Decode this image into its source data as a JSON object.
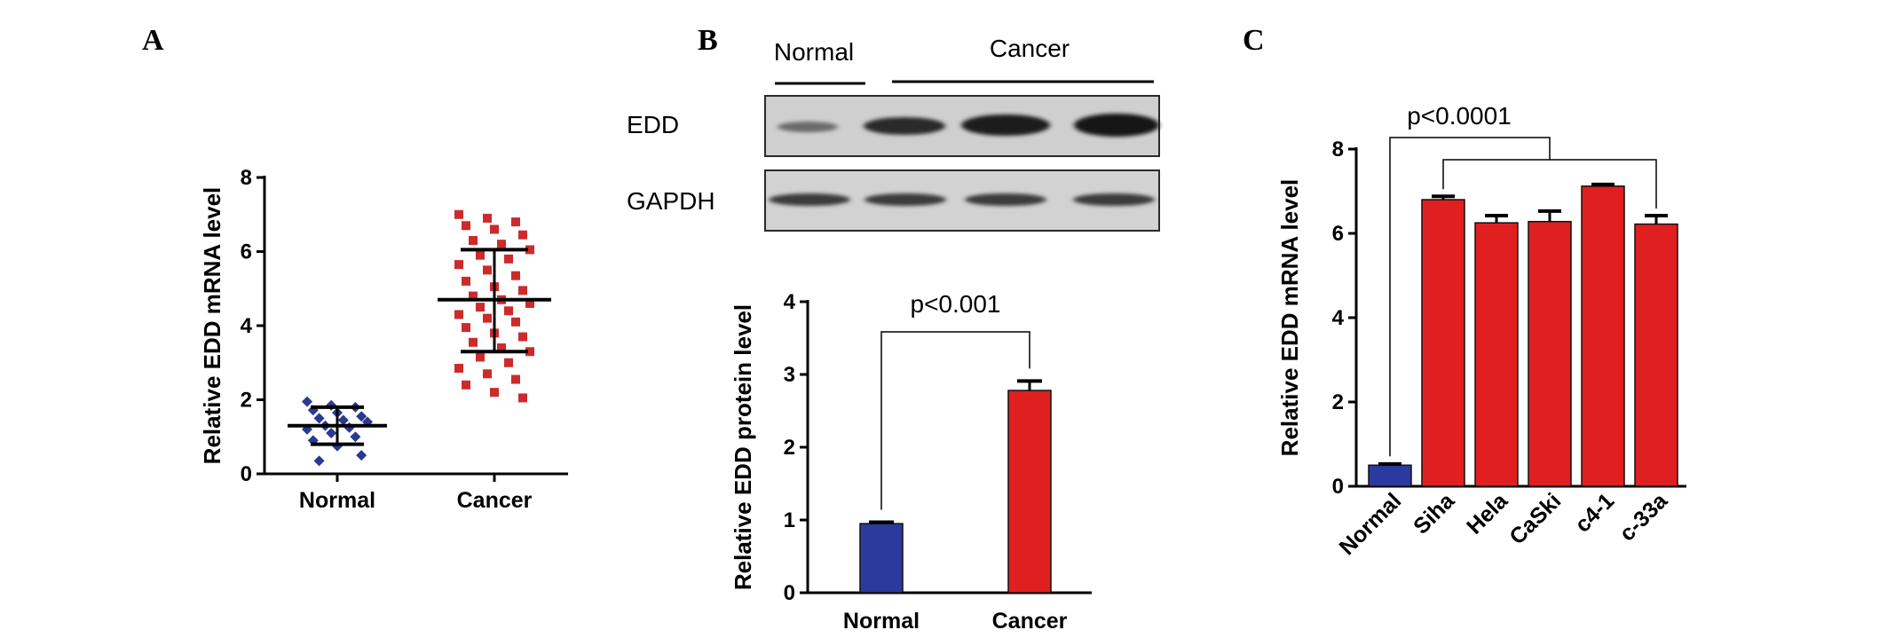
{
  "panels": {
    "a": "A",
    "b": "B",
    "c": "C"
  },
  "blot": {
    "group_labels": [
      "Normal",
      "Cancer"
    ],
    "row_labels": [
      "EDD",
      "GAPDH"
    ]
  },
  "chart_data": [
    {
      "id": "A",
      "type": "scatter",
      "ylabel": "Relative EDD mRNA level",
      "categories": [
        "Normal",
        "Cancer"
      ],
      "ylim": [
        0,
        8
      ],
      "yticks": [
        0,
        2,
        4,
        6,
        8
      ],
      "colors": [
        "#2b3a8f",
        "#cc2b2b"
      ],
      "series": [
        {
          "values": [
            1.95,
            1.85,
            1.8,
            1.72,
            1.65,
            1.55,
            1.5,
            1.45,
            1.4,
            1.3,
            1.25,
            1.2,
            1.1,
            1.0,
            0.9,
            0.75,
            0.5,
            0.35
          ],
          "mean": 1.3,
          "sd_low": 0.8,
          "sd_high": 1.8
        },
        {
          "values": [
            7.0,
            6.9,
            6.8,
            6.7,
            6.6,
            6.45,
            6.3,
            6.2,
            6.05,
            5.9,
            5.8,
            5.65,
            5.5,
            5.35,
            5.2,
            5.05,
            4.95,
            4.8,
            4.7,
            4.6,
            4.5,
            4.4,
            4.3,
            4.2,
            4.1,
            3.95,
            3.8,
            3.7,
            3.55,
            3.4,
            3.3,
            3.15,
            3.0,
            2.85,
            2.7,
            2.55,
            2.4,
            2.2,
            2.05
          ],
          "mean": 4.7,
          "sd_low": 3.3,
          "sd_high": 6.05
        }
      ]
    },
    {
      "id": "B",
      "type": "bar",
      "ylabel": "Relative EDD protein level",
      "categories": [
        "Normal",
        "Cancer"
      ],
      "values": [
        0.95,
        2.78
      ],
      "errors": [
        0.02,
        0.13
      ],
      "colors": [
        "#2b3a9c",
        "#e02020"
      ],
      "ylim": [
        0,
        4
      ],
      "yticks": [
        0,
        1,
        2,
        3,
        4
      ],
      "annotation": "p<0.001"
    },
    {
      "id": "C",
      "type": "bar",
      "ylabel": "Relative EDD mRNA level",
      "categories": [
        "Normal",
        "Siha",
        "Hela",
        "CaSki",
        "c4-1",
        "c-33a"
      ],
      "values": [
        0.5,
        6.8,
        6.25,
        6.28,
        7.12,
        6.22
      ],
      "errors": [
        0.03,
        0.08,
        0.17,
        0.25,
        0.04,
        0.2
      ],
      "colors": [
        "#2b3a9c",
        "#e02020",
        "#e02020",
        "#e02020",
        "#e02020",
        "#e02020"
      ],
      "ylim": [
        0,
        8
      ],
      "yticks": [
        0,
        2,
        4,
        6,
        8
      ],
      "annotation": "p<0.0001"
    }
  ]
}
